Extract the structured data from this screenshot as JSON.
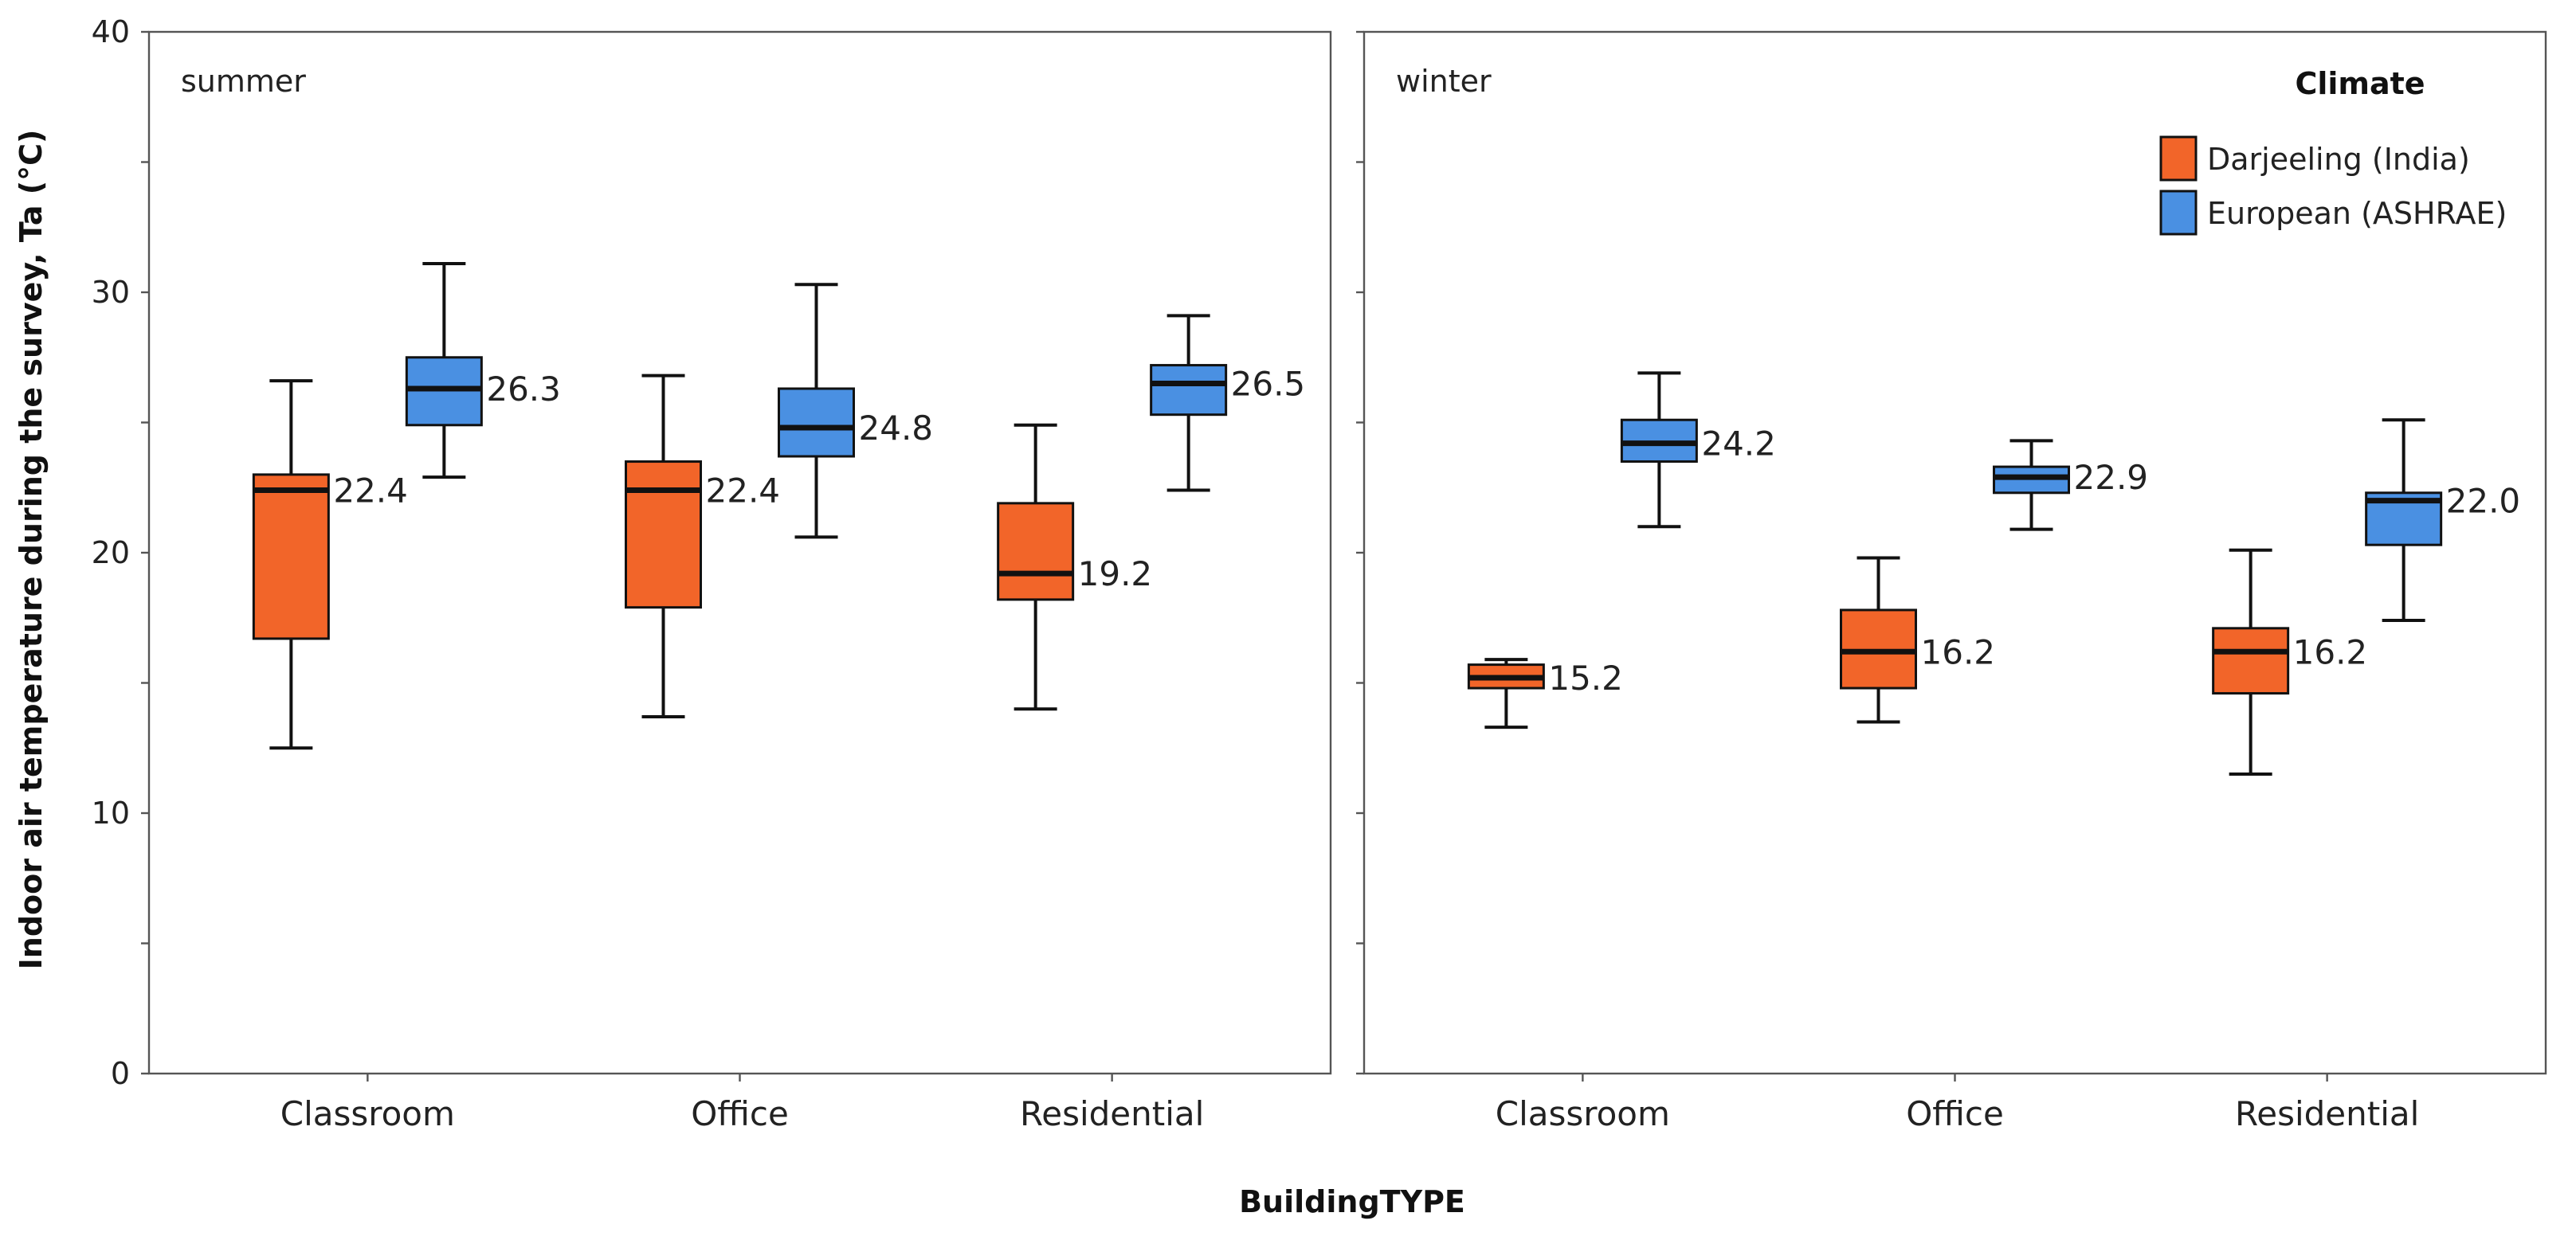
{
  "chart_data": {
    "type": "boxplot",
    "ylabel": "Indoor air temperature during the survey, Ta (°C)",
    "xlabel": "BuildingTYPE",
    "ylim": [
      0,
      40
    ],
    "yticks": [
      0,
      10,
      20,
      30,
      40
    ],
    "categories": [
      "Classroom",
      "Office",
      "Residential"
    ],
    "legend": {
      "title": "Climate",
      "placement": "top-right",
      "entries": [
        {
          "name": "Darjeeling (India)",
          "color": "#F26529"
        },
        {
          "name": "European (ASHRAE)",
          "color": "#4A90E2"
        }
      ]
    },
    "panels": [
      {
        "label": "summer",
        "series": [
          {
            "name": "Darjeeling (India)",
            "color": "#F26529",
            "boxes": [
              {
                "category": "Classroom",
                "min": 12.5,
                "q1": 16.7,
                "median": 22.4,
                "q3": 23.0,
                "max": 26.6,
                "label": "22.4"
              },
              {
                "category": "Office",
                "min": 13.7,
                "q1": 17.9,
                "median": 22.4,
                "q3": 23.5,
                "max": 26.8,
                "label": "22.4"
              },
              {
                "category": "Residential",
                "min": 14.0,
                "q1": 18.2,
                "median": 19.2,
                "q3": 21.9,
                "max": 24.9,
                "label": "19.2"
              }
            ]
          },
          {
            "name": "European (ASHRAE)",
            "color": "#4A90E2",
            "boxes": [
              {
                "category": "Classroom",
                "min": 22.9,
                "q1": 24.9,
                "median": 26.3,
                "q3": 27.5,
                "max": 31.1,
                "label": "26.3"
              },
              {
                "category": "Office",
                "min": 20.6,
                "q1": 23.7,
                "median": 24.8,
                "q3": 26.3,
                "max": 30.3,
                "label": "24.8"
              },
              {
                "category": "Residential",
                "min": 22.4,
                "q1": 25.3,
                "median": 26.5,
                "q3": 27.2,
                "max": 29.1,
                "label": "26.5"
              }
            ]
          }
        ]
      },
      {
        "label": "winter",
        "series": [
          {
            "name": "Darjeeling (India)",
            "color": "#F26529",
            "boxes": [
              {
                "category": "Classroom",
                "min": 13.3,
                "q1": 14.8,
                "median": 15.2,
                "q3": 15.7,
                "max": 15.9,
                "label": "15.2"
              },
              {
                "category": "Office",
                "min": 13.5,
                "q1": 14.8,
                "median": 16.2,
                "q3": 17.8,
                "max": 19.8,
                "label": "16.2"
              },
              {
                "category": "Residential",
                "min": 11.5,
                "q1": 14.6,
                "median": 16.2,
                "q3": 17.1,
                "max": 20.1,
                "label": "16.2"
              }
            ]
          },
          {
            "name": "European (ASHRAE)",
            "color": "#4A90E2",
            "boxes": [
              {
                "category": "Classroom",
                "min": 21.0,
                "q1": 23.5,
                "median": 24.2,
                "q3": 25.1,
                "max": 26.9,
                "label": "24.2"
              },
              {
                "category": "Office",
                "min": 20.9,
                "q1": 22.3,
                "median": 22.9,
                "q3": 23.3,
                "max": 24.3,
                "label": "22.9"
              },
              {
                "category": "Residential",
                "min": 17.4,
                "q1": 20.3,
                "median": 22.0,
                "q3": 22.3,
                "max": 25.1,
                "label": "22.0"
              }
            ]
          }
        ]
      }
    ]
  }
}
